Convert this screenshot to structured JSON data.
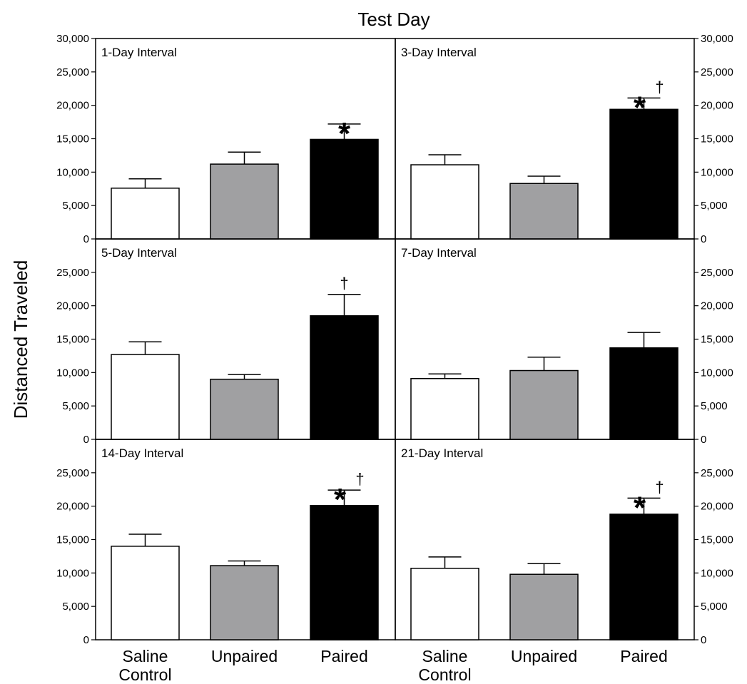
{
  "chart_data": {
    "type": "bar",
    "title": "Test Day",
    "ylabel": "Distanced Traveled",
    "ylim": [
      0,
      30000
    ],
    "categories": [
      "Saline\nControl",
      "Unpaired",
      "Paired"
    ],
    "bar_colors": [
      "#ffffff",
      "#a0a0a2",
      "#000000"
    ],
    "top_ticks": [
      "0",
      "5,000",
      "10,000",
      "15,000",
      "20,000",
      "25,000",
      "30,000"
    ],
    "lower_ticks": [
      "0",
      "5,000",
      "10,000",
      "15,000",
      "20,000",
      "25,000"
    ],
    "panels": [
      {
        "label": "1-Day Interval",
        "values": [
          7600,
          11200,
          14900
        ],
        "errors": [
          1400,
          1800,
          2300
        ],
        "markers": [
          "",
          "",
          "*"
        ]
      },
      {
        "label": "3-Day Interval",
        "values": [
          11100,
          8300,
          19400
        ],
        "errors": [
          1500,
          1100,
          1700
        ],
        "markers": [
          "",
          "",
          "* †"
        ]
      },
      {
        "label": "5-Day Interval",
        "values": [
          12700,
          9000,
          18500
        ],
        "errors": [
          1900,
          700,
          3200
        ],
        "markers": [
          "",
          "",
          "†"
        ]
      },
      {
        "label": "7-Day Interval",
        "values": [
          9100,
          10300,
          13700
        ],
        "errors": [
          700,
          2000,
          2300
        ],
        "markers": [
          "",
          "",
          ""
        ]
      },
      {
        "label": "14-Day Interval",
        "values": [
          14000,
          11100,
          20100
        ],
        "errors": [
          1800,
          700,
          2300
        ],
        "markers": [
          "",
          "",
          "* †"
        ]
      },
      {
        "label": "21-Day Interval",
        "values": [
          10700,
          9800,
          18800
        ],
        "errors": [
          1700,
          1600,
          2400
        ],
        "markers": [
          "",
          "",
          "* †"
        ]
      }
    ]
  }
}
